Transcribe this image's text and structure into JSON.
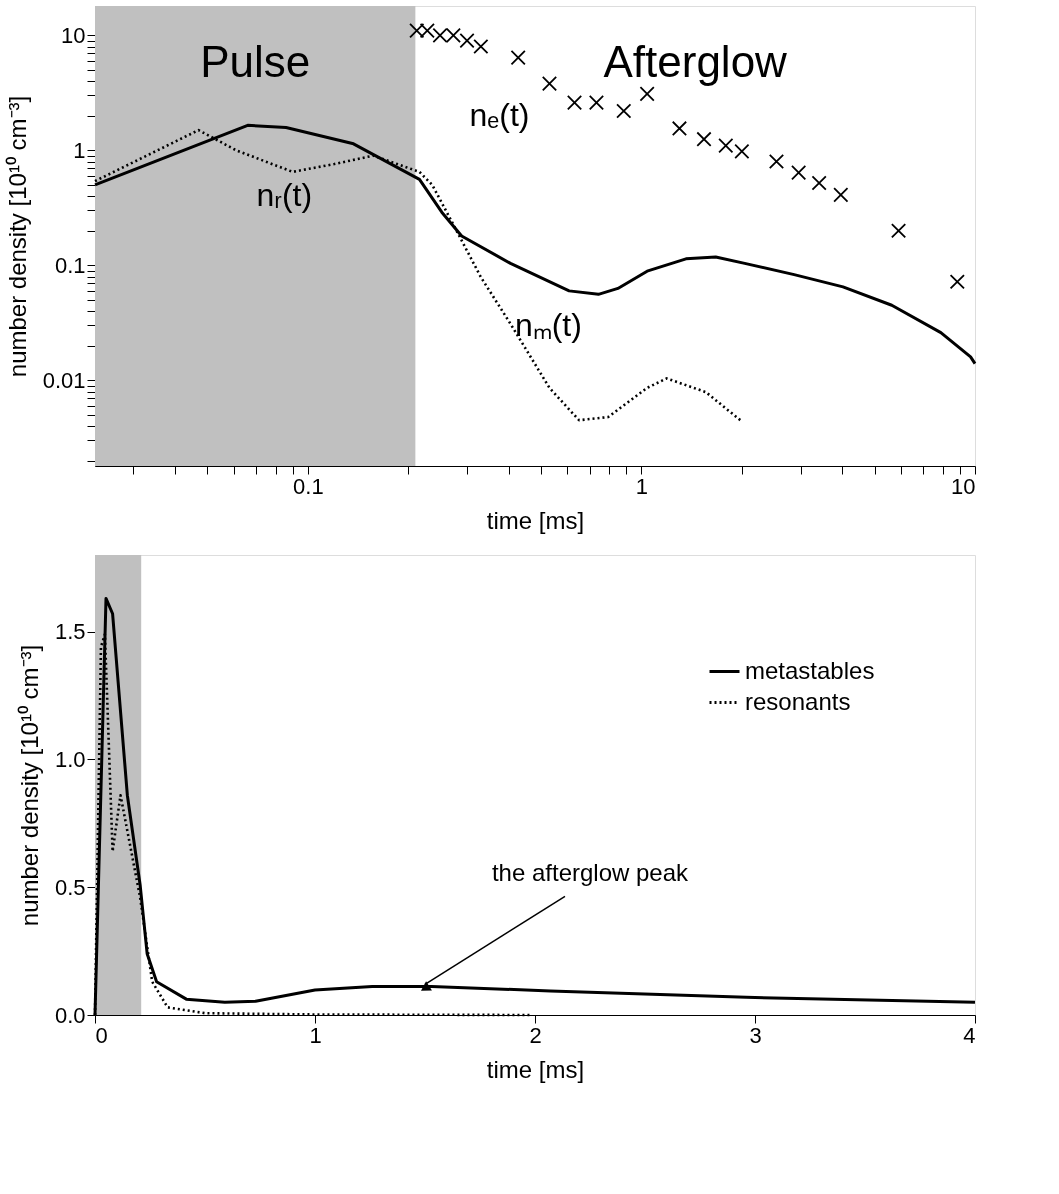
{
  "chart_data": [
    {
      "type": "line",
      "xlabel": "time [ms]",
      "ylabel": "number density [10¹⁰ cm⁻³]",
      "log": "xy",
      "grid": false,
      "legend": false,
      "xlim": [
        0.023,
        10
      ],
      "ylim": [
        0.0018,
        18
      ],
      "xticks": [
        {
          "value": 0.03,
          "label": null
        },
        {
          "value": 0.04,
          "label": null
        },
        {
          "value": 0.05,
          "label": null
        },
        {
          "value": 0.06,
          "label": null
        },
        {
          "value": 0.07,
          "label": null
        },
        {
          "value": 0.08,
          "label": null
        },
        {
          "value": 0.09,
          "label": null
        },
        0.1,
        {
          "value": 0.2,
          "label": null
        },
        {
          "value": 0.3,
          "label": null
        },
        {
          "value": 0.4,
          "label": null
        },
        {
          "value": 0.5,
          "label": null
        },
        {
          "value": 0.6,
          "label": null
        },
        {
          "value": 0.7,
          "label": null
        },
        {
          "value": 0.8,
          "label": null
        },
        {
          "value": 0.9,
          "label": null
        },
        1,
        {
          "value": 2,
          "label": null
        },
        {
          "value": 3,
          "label": null
        },
        {
          "value": 4,
          "label": null
        },
        {
          "value": 5,
          "label": null
        },
        {
          "value": 6,
          "label": null
        },
        {
          "value": 7,
          "label": null
        },
        {
          "value": 8,
          "label": null
        },
        {
          "value": 9,
          "label": null
        },
        10
      ],
      "yticks": [
        {
          "value": 0.002,
          "label": null
        },
        {
          "value": 0.003,
          "label": null
        },
        {
          "value": 0.004,
          "label": null
        },
        {
          "value": 0.005,
          "label": null
        },
        {
          "value": 0.006,
          "label": null
        },
        {
          "value": 0.007,
          "label": null
        },
        {
          "value": 0.008,
          "label": null
        },
        {
          "value": 0.009,
          "label": null
        },
        0.01,
        {
          "value": 0.02,
          "label": null
        },
        {
          "value": 0.03,
          "label": null
        },
        {
          "value": 0.04,
          "label": null
        },
        {
          "value": 0.05,
          "label": null
        },
        {
          "value": 0.06,
          "label": null
        },
        {
          "value": 0.07,
          "label": null
        },
        {
          "value": 0.08,
          "label": null
        },
        {
          "value": 0.09,
          "label": null
        },
        0.1,
        {
          "value": 0.2,
          "label": null
        },
        {
          "value": 0.3,
          "label": null
        },
        {
          "value": 0.4,
          "label": null
        },
        {
          "value": 0.5,
          "label": null
        },
        {
          "value": 0.6,
          "label": null
        },
        {
          "value": 0.7,
          "label": null
        },
        {
          "value": 0.8,
          "label": null
        },
        {
          "value": 0.9,
          "label": null
        },
        1,
        {
          "value": 2,
          "label": null
        },
        {
          "value": 3,
          "label": null
        },
        {
          "value": 4,
          "label": null
        },
        {
          "value": 5,
          "label": null
        },
        {
          "value": 6,
          "label": null
        },
        {
          "value": 7,
          "label": null
        },
        {
          "value": 8,
          "label": null
        },
        {
          "value": 9,
          "label": null
        },
        10
      ],
      "bands": [
        {
          "axis": "x",
          "from": 0.023,
          "to": 0.21,
          "label": "Pulse",
          "color": "#c0c0c0"
        }
      ],
      "series": [
        {
          "line_style": "solid",
          "color": "#000000",
          "x": [
            0.023,
            0.066,
            0.086,
            0.137,
            0.216,
            0.252,
            0.289,
            0.405,
            0.607,
            0.743,
            0.85,
            1.04,
            1.36,
            1.67,
            2.04,
            2.87,
            4.02,
            5.63,
            7.9,
            9.7,
            10
          ],
          "values": [
            0.5,
            1.65,
            1.58,
            1.14,
            0.56,
            0.29,
            0.18,
            0.104,
            0.06,
            0.056,
            0.063,
            0.089,
            0.114,
            0.118,
            0.104,
            0.083,
            0.065,
            0.045,
            0.026,
            0.016,
            0.014
          ]
        },
        {
          "line_style": "dotted",
          "color": "#000000",
          "x": [
            0.023,
            0.047,
            0.061,
            0.09,
            0.12,
            0.157,
            0.216,
            0.236,
            0.27,
            0.33,
            0.405,
            0.53,
            0.65,
            0.795,
            1.04,
            1.19,
            1.56,
            1.98
          ],
          "values": [
            0.54,
            1.5,
            1.0,
            0.65,
            0.76,
            0.9,
            0.65,
            0.5,
            0.24,
            0.079,
            0.031,
            0.0086,
            0.0045,
            0.0048,
            0.0086,
            0.0104,
            0.0079,
            0.0045
          ]
        },
        {
          "type": "scatter",
          "marker": "cross",
          "color": "#000000",
          "x": [
            0.212,
            0.228,
            0.249,
            0.273,
            0.3,
            0.33,
            0.427,
            0.53,
            0.63,
            0.733,
            0.885,
            1.04,
            1.3,
            1.54,
            1.79,
            2.0,
            2.54,
            2.96,
            3.41,
            3.96,
            5.9,
            8.85
          ],
          "values": [
            11,
            11,
            10,
            10,
            9,
            8,
            6.4,
            3.8,
            2.6,
            2.6,
            2.2,
            3.1,
            1.55,
            1.25,
            1.1,
            0.98,
            0.8,
            0.64,
            0.52,
            0.41,
            0.2,
            0.072
          ]
        }
      ],
      "annotations": [
        "Afterglow",
        {
          "text": "nₑ(t)",
          "x": 0.53,
          "y": 3.8
        },
        {
          "text": "nᵣ(t)",
          "x": 0.12,
          "y": 0.76
        },
        {
          "text": "nₘ(t)",
          "x": 0.743,
          "y": 0.056
        }
      ]
    },
    {
      "type": "line",
      "xlabel": "time [ms]",
      "ylabel": "number density [10¹⁰ cm⁻³]",
      "grid": false,
      "legend": "top right",
      "xlim": [
        0,
        4
      ],
      "ylim": [
        0,
        1.8
      ],
      "xticks": [
        0,
        1,
        2,
        3,
        4
      ],
      "yticks": [
        {
          "value": 0,
          "label": "0.0"
        },
        0.5,
        {
          "value": 1,
          "label": "1.0"
        },
        1.5
      ],
      "bands": [
        {
          "axis": "x",
          "from": 0,
          "to": 0.21,
          "color": "#c0c0c0"
        }
      ],
      "series": [
        {
          "name": "metastables",
          "line_style": "solid",
          "color": "#000000",
          "x": [
            0,
            0.05,
            0.08,
            0.147,
            0.205,
            0.237,
            0.28,
            0.415,
            0.59,
            0.73,
            1.0,
            1.26,
            1.53,
            2.07,
            2.96,
            4
          ],
          "values": [
            0,
            1.63,
            1.57,
            0.86,
            0.51,
            0.24,
            0.13,
            0.062,
            0.05,
            0.054,
            0.098,
            0.112,
            0.112,
            0.094,
            0.069,
            0.05
          ]
        },
        {
          "name": "resonants",
          "line_style": "dotted",
          "color": "#000000",
          "x": [
            0,
            0.027,
            0.045,
            0.08,
            0.116,
            0.156,
            0.205,
            0.26,
            0.33,
            0.5,
            1.0,
            1.98
          ],
          "values": [
            0,
            1.44,
            1.49,
            0.64,
            0.86,
            0.68,
            0.46,
            0.13,
            0.03,
            0.007,
            0.002,
            0.0
          ]
        }
      ],
      "annotations": [
        {
          "text": "the afterglow peak",
          "x": 1.5,
          "y": 0.12
        }
      ]
    }
  ]
}
